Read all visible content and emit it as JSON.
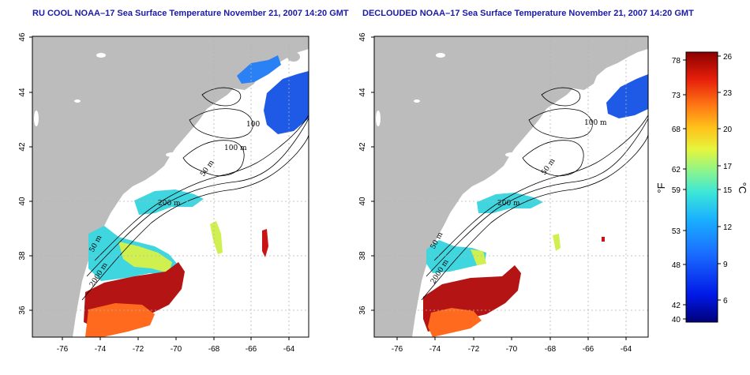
{
  "panels": [
    {
      "title": "RU COOL NOAA–17 Sea Surface Temperature November 21, 2007 14:20 GMT"
    },
    {
      "title": "DECLOUDED NOAA–17 Sea Surface Temperature November 21, 2007 14:20 GMT"
    }
  ],
  "axes": {
    "lon_ticks": [
      "-76",
      "-74",
      "-72",
      "-70",
      "-68",
      "-66",
      "-64"
    ],
    "lat_ticks": [
      "46",
      "44",
      "42",
      "40",
      "38",
      "36"
    ]
  },
  "contour_labels": {
    "left": [
      "100",
      "100 m",
      "50 m",
      "200 m",
      "50 m",
      "2000 m"
    ],
    "right": [
      "100 m",
      "50 m",
      "200 m",
      "50 m",
      "2000 m"
    ]
  },
  "colorbar": {
    "fahrenheit_ticks": [
      "78",
      "73",
      "68",
      "62",
      "59",
      "53",
      "48",
      "42",
      "40"
    ],
    "celsius_ticks": [
      "26",
      "23",
      "20",
      "17",
      "15",
      "12",
      "9",
      "6"
    ],
    "fahrenheit_unit": "°F",
    "celsius_unit": "°C",
    "min_c": 4,
    "max_c": 26
  },
  "colors": {
    "land": "#bcbcbc",
    "ocean": "#ffffff",
    "title": "#1a1aa6",
    "grid": "#b4b4b4"
  }
}
